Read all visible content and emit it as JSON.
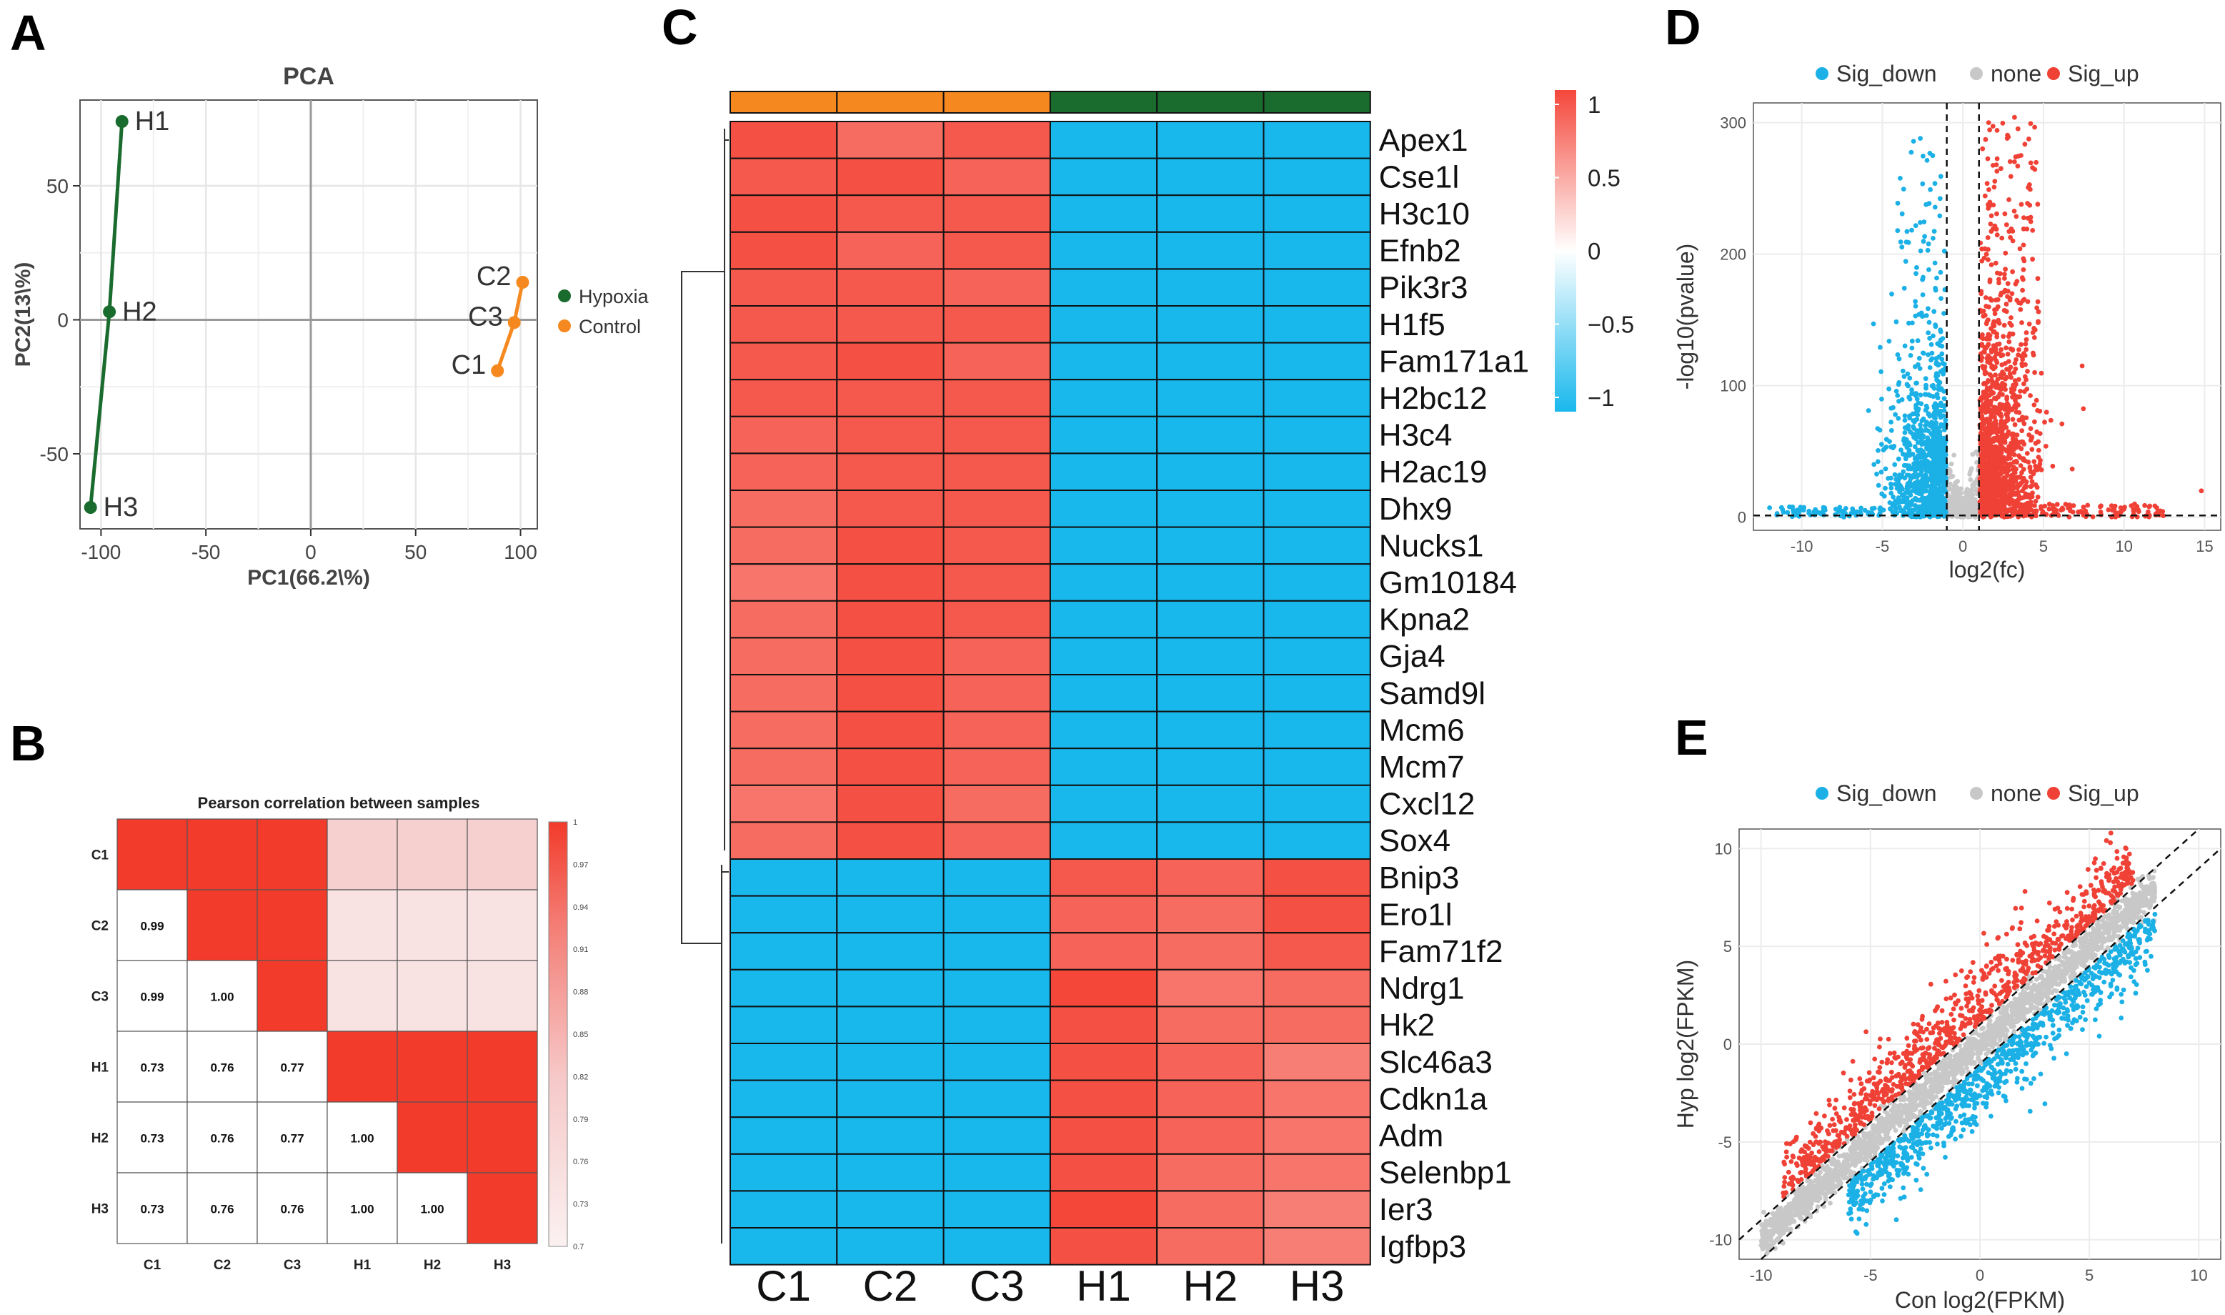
{
  "panels": [
    "A",
    "B",
    "C",
    "D",
    "E"
  ],
  "colors": {
    "hypoxia": "#1a6b2e",
    "control": "#f5891f",
    "sig_down": "#1bb0e6",
    "sig_up": "#ef4136",
    "none": "#c8c8c8",
    "heat_high": "#f4473a",
    "heat_low": "#18b8ec",
    "corr_high": "#f23b2b",
    "corr_low": "#f7dcdc"
  },
  "chart_data": [
    {
      "panel": "A",
      "type": "scatter",
      "title": "PCA",
      "xlabel": "PC1(66.2\\%)",
      "ylabel": "PC2(13\\%)",
      "xlim": [
        -110,
        108
      ],
      "ylim": [
        -78,
        82
      ],
      "xticks": [
        -100,
        -50,
        0,
        50,
        100
      ],
      "yticks": [
        -50,
        0,
        50
      ],
      "legend": [
        "Hypoxia",
        "Control"
      ],
      "series": [
        {
          "name": "Hypoxia",
          "points": [
            {
              "label": "H1",
              "x": -90,
              "y": 74
            },
            {
              "label": "H2",
              "x": -96,
              "y": 3
            },
            {
              "label": "H3",
              "x": -105,
              "y": -70
            }
          ]
        },
        {
          "name": "Control",
          "points": [
            {
              "label": "C2",
              "x": 101,
              "y": 14
            },
            {
              "label": "C3",
              "x": 97,
              "y": -1
            },
            {
              "label": "C1",
              "x": 89,
              "y": -19
            }
          ]
        }
      ]
    },
    {
      "panel": "B",
      "type": "heatmap",
      "title": "Pearson correlation between samples",
      "labels": [
        "C1",
        "C2",
        "C3",
        "H1",
        "H2",
        "H3"
      ],
      "matrix": [
        [
          1.0,
          0.99,
          0.99,
          0.73,
          0.73,
          0.73
        ],
        [
          0.99,
          1.0,
          1.0,
          0.76,
          0.76,
          0.76
        ],
        [
          0.99,
          1.0,
          1.0,
          0.77,
          0.77,
          0.76
        ],
        [
          0.73,
          0.76,
          0.77,
          1.0,
          1.0,
          1.0
        ],
        [
          0.73,
          0.76,
          0.77,
          1.0,
          1.0,
          1.0
        ],
        [
          0.73,
          0.76,
          0.76,
          1.0,
          1.0,
          1.0
        ]
      ],
      "lower_labels": [
        {
          "r": 1,
          "c": 0,
          "t": "0.99"
        },
        {
          "r": 2,
          "c": 0,
          "t": "0.99"
        },
        {
          "r": 2,
          "c": 1,
          "t": "1.00"
        },
        {
          "r": 3,
          "c": 0,
          "t": "0.73"
        },
        {
          "r": 3,
          "c": 1,
          "t": "0.76"
        },
        {
          "r": 3,
          "c": 2,
          "t": "0.77"
        },
        {
          "r": 4,
          "c": 0,
          "t": "0.73"
        },
        {
          "r": 4,
          "c": 1,
          "t": "0.76"
        },
        {
          "r": 4,
          "c": 2,
          "t": "0.77"
        },
        {
          "r": 4,
          "c": 3,
          "t": "1.00"
        },
        {
          "r": 5,
          "c": 0,
          "t": "0.73"
        },
        {
          "r": 5,
          "c": 1,
          "t": "0.76"
        },
        {
          "r": 5,
          "c": 2,
          "t": "0.76"
        },
        {
          "r": 5,
          "c": 3,
          "t": "1.00"
        },
        {
          "r": 5,
          "c": 4,
          "t": "1.00"
        }
      ],
      "colorbar_ticks": [
        "1",
        "0.97",
        "0.94",
        "0.91",
        "0.88",
        "0.85",
        "0.82",
        "0.79",
        "0.76",
        "0.73",
        "0.7"
      ]
    },
    {
      "panel": "C",
      "type": "heatmap",
      "columns": [
        "C1",
        "C2",
        "C3",
        "H1",
        "H2",
        "H3"
      ],
      "column_groups": [
        "control",
        "control",
        "control",
        "hypoxia",
        "hypoxia",
        "hypoxia"
      ],
      "genes": [
        "Apex1",
        "Cse1l",
        "H3c10",
        "Efnb2",
        "Pik3r3",
        "H1f5",
        "Fam171a1",
        "H2bc12",
        "H3c4",
        "H2ac19",
        "Dhx9",
        "Nucks1",
        "Gm10184",
        "Kpna2",
        "Gja4",
        "Samd9l",
        "Mcm6",
        "Mcm7",
        "Cxcl12",
        "Sox4",
        "Bnip3",
        "Ero1l",
        "Fam71f2",
        "Ndrg1",
        "Hk2",
        "Slc46a3",
        "Cdkn1a",
        "Adm",
        "Selenbp1",
        "Ier3",
        "Igfbp3"
      ],
      "values": [
        [
          0.95,
          0.8,
          0.9,
          -1.0,
          -1.0,
          -1.0
        ],
        [
          0.9,
          0.95,
          0.85,
          -1.0,
          -1.0,
          -1.0
        ],
        [
          0.95,
          0.9,
          0.9,
          -1.0,
          -1.0,
          -1.0
        ],
        [
          0.95,
          0.85,
          0.9,
          -1.0,
          -1.0,
          -1.0
        ],
        [
          0.9,
          0.9,
          0.85,
          -1.0,
          -1.0,
          -1.0
        ],
        [
          0.9,
          0.9,
          0.9,
          -1.0,
          -1.0,
          -1.0
        ],
        [
          0.9,
          0.95,
          0.85,
          -1.0,
          -1.0,
          -1.0
        ],
        [
          0.9,
          0.9,
          0.9,
          -1.0,
          -1.0,
          -1.0
        ],
        [
          0.85,
          0.9,
          0.9,
          -1.0,
          -1.0,
          -1.0
        ],
        [
          0.85,
          0.9,
          0.9,
          -1.0,
          -1.0,
          -1.0
        ],
        [
          0.8,
          0.9,
          0.9,
          -1.0,
          -1.0,
          -1.0
        ],
        [
          0.8,
          0.95,
          0.9,
          -1.0,
          -1.0,
          -1.0
        ],
        [
          0.75,
          0.95,
          0.9,
          -1.0,
          -1.0,
          -1.0
        ],
        [
          0.8,
          0.95,
          0.9,
          -1.0,
          -1.0,
          -1.0
        ],
        [
          0.8,
          0.95,
          0.85,
          -1.0,
          -1.0,
          -1.0
        ],
        [
          0.8,
          0.95,
          0.85,
          -1.0,
          -1.0,
          -1.0
        ],
        [
          0.8,
          0.95,
          0.85,
          -1.0,
          -1.0,
          -1.0
        ],
        [
          0.8,
          0.95,
          0.85,
          -1.0,
          -1.0,
          -1.0
        ],
        [
          0.75,
          0.95,
          0.8,
          -1.0,
          -1.0,
          -1.0
        ],
        [
          0.8,
          0.95,
          0.85,
          -1.0,
          -1.0,
          -1.0
        ],
        [
          -1.0,
          -1.0,
          -1.0,
          0.9,
          0.85,
          0.95
        ],
        [
          -1.0,
          -1.0,
          -1.0,
          0.85,
          0.8,
          0.95
        ],
        [
          -1.0,
          -1.0,
          -1.0,
          0.85,
          0.8,
          0.9
        ],
        [
          -1.0,
          -1.0,
          -1.0,
          1.0,
          0.75,
          0.8
        ],
        [
          -1.0,
          -1.0,
          -1.0,
          0.95,
          0.8,
          0.8
        ],
        [
          -1.0,
          -1.0,
          -1.0,
          0.95,
          0.85,
          0.7
        ],
        [
          -1.0,
          -1.0,
          -1.0,
          0.95,
          0.85,
          0.75
        ],
        [
          -1.0,
          -1.0,
          -1.0,
          0.95,
          0.85,
          0.75
        ],
        [
          -1.0,
          -1.0,
          -1.0,
          0.95,
          0.8,
          0.75
        ],
        [
          -1.0,
          -1.0,
          -1.0,
          1.0,
          0.8,
          0.7
        ],
        [
          -1.0,
          -1.0,
          -1.0,
          0.95,
          0.8,
          0.7
        ]
      ],
      "colorbar_ticks": [
        {
          "v": 1,
          "t": "1"
        },
        {
          "v": 0.5,
          "t": "0.5"
        },
        {
          "v": 0,
          "t": "0"
        },
        {
          "v": -0.5,
          "t": "−0.5"
        },
        {
          "v": -1,
          "t": "−1"
        }
      ]
    },
    {
      "panel": "D",
      "type": "scatter",
      "subtype": "volcano",
      "xlabel": "log2(fc)",
      "ylabel": "-log10(pvalue)",
      "xlim": [
        -13,
        16
      ],
      "ylim": [
        -10,
        315
      ],
      "xticks": [
        -10,
        -5,
        0,
        5,
        10,
        15
      ],
      "yticks": [
        0,
        100,
        200,
        300
      ],
      "fc_threshold": 1,
      "p_threshold": 1.3,
      "legend": [
        "Sig_down",
        "none",
        "Sig_up"
      ]
    },
    {
      "panel": "E",
      "type": "scatter",
      "xlabel": "Con log2(FPKM)",
      "ylabel": "Hyp log2(FPKM)",
      "xlim": [
        -11,
        11
      ],
      "ylim": [
        -11,
        11
      ],
      "xticks": [
        -10,
        -5,
        0,
        5,
        10
      ],
      "yticks": [
        -10,
        -5,
        0,
        5,
        10
      ],
      "diagonal_offset": 1,
      "legend": [
        "Sig_down",
        "none",
        "Sig_up"
      ]
    }
  ]
}
